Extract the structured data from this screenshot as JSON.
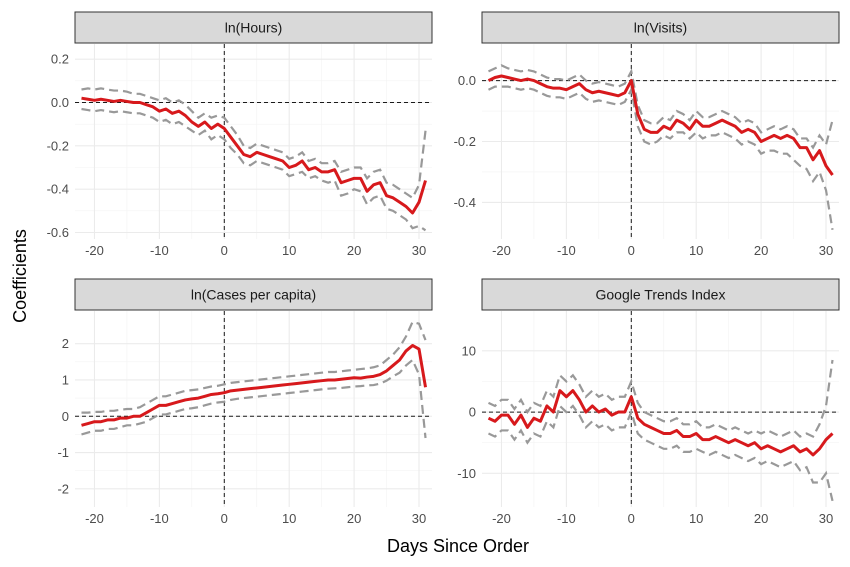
{
  "axes": {
    "xlabel": "Days Since Order",
    "ylabel": "Coefficients"
  },
  "colors": {
    "estimate": "#d7191c",
    "confidence_band": "#999999",
    "reference": "#1a1a1a",
    "strip": "#d9d9d9"
  },
  "chart_data": [
    {
      "type": "line",
      "title": "ln(Hours)",
      "xlim": [
        -23,
        32
      ],
      "ylim": [
        -0.63,
        0.27
      ],
      "x_ticks": [
        -20,
        -10,
        0,
        10,
        20,
        30
      ],
      "y_ticks": [
        -0.6,
        -0.4,
        -0.2,
        0.0,
        0.2
      ],
      "y_tick_labels": [
        "-0.6",
        "-0.4",
        "-0.2",
        "0.0",
        "0.2"
      ],
      "x": [
        -22,
        -21,
        -20,
        -19,
        -18,
        -17,
        -16,
        -15,
        -14,
        -13,
        -12,
        -11,
        -10,
        -9,
        -8,
        -7,
        -6,
        -5,
        -4,
        -3,
        -2,
        -1,
        0,
        1,
        2,
        3,
        4,
        5,
        6,
        7,
        8,
        9,
        10,
        11,
        12,
        13,
        14,
        15,
        16,
        17,
        18,
        19,
        20,
        21,
        22,
        23,
        24,
        25,
        26,
        27,
        28,
        29,
        30,
        31
      ],
      "series": [
        {
          "role": "estimate",
          "values": [
            0.02,
            0.015,
            0.01,
            0.015,
            0.01,
            0.005,
            0.01,
            0.005,
            0.0,
            0.0,
            -0.01,
            -0.02,
            -0.04,
            -0.03,
            -0.05,
            -0.04,
            -0.06,
            -0.09,
            -0.11,
            -0.09,
            -0.12,
            -0.1,
            -0.12,
            -0.16,
            -0.2,
            -0.24,
            -0.25,
            -0.23,
            -0.24,
            -0.25,
            -0.26,
            -0.27,
            -0.3,
            -0.29,
            -0.27,
            -0.31,
            -0.3,
            -0.32,
            -0.32,
            -0.31,
            -0.37,
            -0.36,
            -0.35,
            -0.35,
            -0.41,
            -0.38,
            -0.37,
            -0.43,
            -0.44,
            -0.46,
            -0.48,
            -0.51,
            -0.46,
            -0.36
          ]
        },
        {
          "role": "upper",
          "values": [
            0.06,
            0.065,
            0.06,
            0.065,
            0.06,
            0.055,
            0.055,
            0.05,
            0.04,
            0.04,
            0.03,
            0.02,
            0.01,
            0.02,
            0.0,
            0.01,
            -0.01,
            -0.04,
            -0.07,
            -0.05,
            -0.07,
            -0.06,
            -0.07,
            -0.11,
            -0.15,
            -0.2,
            -0.21,
            -0.19,
            -0.2,
            -0.21,
            -0.22,
            -0.23,
            -0.26,
            -0.25,
            -0.23,
            -0.27,
            -0.26,
            -0.28,
            -0.28,
            -0.27,
            -0.32,
            -0.31,
            -0.3,
            -0.3,
            -0.35,
            -0.32,
            -0.31,
            -0.37,
            -0.38,
            -0.4,
            -0.42,
            -0.44,
            -0.38,
            -0.13
          ]
        },
        {
          "role": "lower",
          "values": [
            -0.03,
            -0.035,
            -0.04,
            -0.035,
            -0.04,
            -0.045,
            -0.04,
            -0.045,
            -0.05,
            -0.05,
            -0.06,
            -0.07,
            -0.09,
            -0.08,
            -0.1,
            -0.09,
            -0.11,
            -0.13,
            -0.15,
            -0.13,
            -0.17,
            -0.15,
            -0.17,
            -0.21,
            -0.24,
            -0.28,
            -0.29,
            -0.27,
            -0.28,
            -0.29,
            -0.3,
            -0.31,
            -0.34,
            -0.33,
            -0.32,
            -0.35,
            -0.34,
            -0.36,
            -0.37,
            -0.36,
            -0.43,
            -0.42,
            -0.4,
            -0.41,
            -0.47,
            -0.44,
            -0.43,
            -0.49,
            -0.5,
            -0.52,
            -0.54,
            -0.58,
            -0.57,
            -0.59
          ]
        }
      ]
    },
    {
      "type": "line",
      "title": "ln(Visits)",
      "xlim": [
        -23,
        32
      ],
      "ylim": [
        -0.52,
        0.12
      ],
      "x_ticks": [
        -20,
        -10,
        0,
        10,
        20,
        30
      ],
      "y_ticks": [
        -0.4,
        -0.2,
        0.0
      ],
      "y_tick_labels": [
        "-0.4",
        "-0.2",
        "0.0"
      ],
      "x": [
        -22,
        -21,
        -20,
        -19,
        -18,
        -17,
        -16,
        -15,
        -14,
        -13,
        -12,
        -11,
        -10,
        -9,
        -8,
        -7,
        -6,
        -5,
        -4,
        -3,
        -2,
        -1,
        0,
        1,
        2,
        3,
        4,
        5,
        6,
        7,
        8,
        9,
        10,
        11,
        12,
        13,
        14,
        15,
        16,
        17,
        18,
        19,
        20,
        21,
        22,
        23,
        24,
        25,
        26,
        27,
        28,
        29,
        30,
        31
      ],
      "series": [
        {
          "role": "estimate",
          "values": [
            0.0,
            0.01,
            0.015,
            0.01,
            0.005,
            0.0,
            0.005,
            0.0,
            -0.01,
            -0.02,
            -0.025,
            -0.025,
            -0.03,
            -0.02,
            -0.01,
            -0.03,
            -0.04,
            -0.035,
            -0.04,
            -0.045,
            -0.05,
            -0.04,
            0.0,
            -0.11,
            -0.16,
            -0.17,
            -0.17,
            -0.15,
            -0.16,
            -0.13,
            -0.14,
            -0.16,
            -0.13,
            -0.15,
            -0.15,
            -0.14,
            -0.13,
            -0.14,
            -0.15,
            -0.17,
            -0.16,
            -0.17,
            -0.2,
            -0.19,
            -0.18,
            -0.19,
            -0.18,
            -0.19,
            -0.22,
            -0.22,
            -0.26,
            -0.23,
            -0.28,
            -0.31
          ]
        },
        {
          "role": "upper",
          "values": [
            0.03,
            0.04,
            0.05,
            0.04,
            0.035,
            0.03,
            0.035,
            0.03,
            0.02,
            0.01,
            0.005,
            0.005,
            0.0,
            0.01,
            0.02,
            0.0,
            -0.01,
            -0.005,
            -0.01,
            -0.015,
            -0.02,
            -0.01,
            0.03,
            -0.08,
            -0.13,
            -0.14,
            -0.14,
            -0.12,
            -0.13,
            -0.1,
            -0.11,
            -0.13,
            -0.1,
            -0.12,
            -0.12,
            -0.11,
            -0.1,
            -0.11,
            -0.12,
            -0.14,
            -0.13,
            -0.14,
            -0.17,
            -0.16,
            -0.15,
            -0.16,
            -0.15,
            -0.16,
            -0.19,
            -0.19,
            -0.22,
            -0.18,
            -0.21,
            -0.13
          ]
        },
        {
          "role": "lower",
          "values": [
            -0.03,
            -0.02,
            -0.02,
            -0.02,
            -0.025,
            -0.03,
            -0.025,
            -0.03,
            -0.04,
            -0.05,
            -0.055,
            -0.055,
            -0.06,
            -0.05,
            -0.04,
            -0.06,
            -0.07,
            -0.065,
            -0.07,
            -0.075,
            -0.08,
            -0.07,
            -0.03,
            -0.15,
            -0.2,
            -0.21,
            -0.2,
            -0.18,
            -0.19,
            -0.17,
            -0.17,
            -0.19,
            -0.17,
            -0.19,
            -0.18,
            -0.18,
            -0.17,
            -0.18,
            -0.19,
            -0.21,
            -0.2,
            -0.21,
            -0.24,
            -0.23,
            -0.23,
            -0.24,
            -0.24,
            -0.26,
            -0.28,
            -0.29,
            -0.33,
            -0.3,
            -0.36,
            -0.49
          ]
        }
      ]
    },
    {
      "type": "line",
      "title": "ln(Cases per capita)",
      "xlim": [
        -23,
        32
      ],
      "ylim": [
        -2.5,
        2.9
      ],
      "x_ticks": [
        -20,
        -10,
        0,
        10,
        20,
        30
      ],
      "y_ticks": [
        -2,
        -1,
        0,
        1,
        2
      ],
      "y_tick_labels": [
        "-2",
        "-1",
        "0",
        "1",
        "2"
      ],
      "x": [
        -22,
        -21,
        -20,
        -19,
        -18,
        -17,
        -16,
        -15,
        -14,
        -13,
        -12,
        -11,
        -10,
        -9,
        -8,
        -7,
        -6,
        -5,
        -4,
        -3,
        -2,
        -1,
        0,
        1,
        2,
        3,
        4,
        5,
        6,
        7,
        8,
        9,
        10,
        11,
        12,
        13,
        14,
        15,
        16,
        17,
        18,
        19,
        20,
        21,
        22,
        23,
        24,
        25,
        26,
        27,
        28,
        29,
        30,
        31
      ],
      "series": [
        {
          "role": "estimate",
          "values": [
            -0.25,
            -0.2,
            -0.15,
            -0.15,
            -0.1,
            -0.1,
            -0.05,
            -0.05,
            0.0,
            0.0,
            0.1,
            0.2,
            0.3,
            0.3,
            0.35,
            0.4,
            0.45,
            0.48,
            0.5,
            0.55,
            0.6,
            0.62,
            0.65,
            0.7,
            0.72,
            0.74,
            0.76,
            0.78,
            0.8,
            0.82,
            0.84,
            0.86,
            0.88,
            0.9,
            0.92,
            0.94,
            0.96,
            0.98,
            1.0,
            1.0,
            1.02,
            1.04,
            1.06,
            1.05,
            1.08,
            1.1,
            1.15,
            1.25,
            1.4,
            1.55,
            1.8,
            1.95,
            1.85,
            0.8
          ]
        },
        {
          "role": "upper",
          "values": [
            0.1,
            0.1,
            0.12,
            0.12,
            0.15,
            0.15,
            0.18,
            0.2,
            0.2,
            0.25,
            0.35,
            0.45,
            0.55,
            0.55,
            0.6,
            0.65,
            0.7,
            0.72,
            0.74,
            0.78,
            0.82,
            0.84,
            0.88,
            0.92,
            0.94,
            0.96,
            0.98,
            1.0,
            1.02,
            1.04,
            1.06,
            1.08,
            1.1,
            1.12,
            1.14,
            1.16,
            1.18,
            1.2,
            1.22,
            1.22,
            1.24,
            1.26,
            1.28,
            1.3,
            1.32,
            1.35,
            1.4,
            1.55,
            1.7,
            1.9,
            2.2,
            2.6,
            2.55,
            2.1
          ]
        },
        {
          "role": "lower",
          "values": [
            -0.5,
            -0.45,
            -0.4,
            -0.4,
            -0.35,
            -0.35,
            -0.3,
            -0.25,
            -0.25,
            -0.2,
            -0.15,
            -0.05,
            0.05,
            0.05,
            0.1,
            0.15,
            0.2,
            0.22,
            0.25,
            0.3,
            0.35,
            0.38,
            0.4,
            0.45,
            0.48,
            0.5,
            0.52,
            0.54,
            0.56,
            0.58,
            0.6,
            0.62,
            0.64,
            0.66,
            0.68,
            0.7,
            0.72,
            0.74,
            0.76,
            0.77,
            0.78,
            0.8,
            0.82,
            0.83,
            0.85,
            0.86,
            0.9,
            0.98,
            1.1,
            1.2,
            1.4,
            1.55,
            1.15,
            -0.6
          ]
        }
      ]
    },
    {
      "type": "line",
      "title": "Google Trends Index",
      "xlim": [
        -23,
        32
      ],
      "ylim": [
        -15.5,
        16.5
      ],
      "x_ticks": [
        -20,
        -10,
        0,
        10,
        20,
        30
      ],
      "y_ticks": [
        -10,
        0,
        10
      ],
      "y_tick_labels": [
        "-10",
        "0",
        "10"
      ],
      "x": [
        -22,
        -21,
        -20,
        -19,
        -18,
        -17,
        -16,
        -15,
        -14,
        -13,
        -12,
        -11,
        -10,
        -9,
        -8,
        -7,
        -6,
        -5,
        -4,
        -3,
        -2,
        -1,
        0,
        1,
        2,
        3,
        4,
        5,
        6,
        7,
        8,
        9,
        10,
        11,
        12,
        13,
        14,
        15,
        16,
        17,
        18,
        19,
        20,
        21,
        22,
        23,
        24,
        25,
        26,
        27,
        28,
        29,
        30,
        31
      ],
      "series": [
        {
          "role": "estimate",
          "values": [
            -1.0,
            -1.5,
            -0.5,
            -0.5,
            -2.0,
            -0.5,
            -2.5,
            -1.0,
            -1.5,
            1.0,
            0.0,
            3.5,
            2.5,
            3.5,
            2.0,
            0.0,
            1.0,
            0.0,
            0.5,
            -0.5,
            0.0,
            0.0,
            2.5,
            -1.0,
            -2.0,
            -2.5,
            -3.0,
            -3.5,
            -3.5,
            -3.0,
            -4.0,
            -4.0,
            -3.5,
            -4.5,
            -4.5,
            -4.0,
            -4.5,
            -5.0,
            -4.5,
            -5.0,
            -5.5,
            -5.0,
            -6.0,
            -5.5,
            -6.0,
            -6.5,
            -6.0,
            -5.5,
            -6.5,
            -6.0,
            -7.0,
            -6.0,
            -4.5,
            -3.5
          ]
        },
        {
          "role": "upper",
          "values": [
            1.5,
            1.0,
            2.0,
            2.0,
            0.5,
            2.0,
            0.0,
            1.5,
            1.0,
            3.5,
            2.5,
            6.0,
            5.0,
            6.0,
            4.5,
            2.5,
            3.5,
            2.5,
            3.0,
            2.0,
            2.5,
            2.5,
            5.0,
            1.5,
            0.0,
            -0.5,
            -1.0,
            -1.5,
            -1.5,
            -1.0,
            -2.0,
            -2.0,
            -1.5,
            -2.5,
            -2.5,
            -2.0,
            -2.5,
            -3.0,
            -2.5,
            -3.0,
            -3.5,
            -3.0,
            -3.5,
            -3.0,
            -3.5,
            -4.0,
            -3.5,
            -3.0,
            -4.0,
            -3.5,
            -4.0,
            -2.0,
            1.0,
            8.5
          ]
        },
        {
          "role": "lower",
          "values": [
            -3.5,
            -4.0,
            -3.0,
            -3.0,
            -4.5,
            -3.0,
            -5.0,
            -3.5,
            -4.0,
            -1.5,
            -2.5,
            1.0,
            0.0,
            1.0,
            -0.5,
            -2.5,
            -1.5,
            -2.5,
            -2.0,
            -3.0,
            -2.5,
            -2.5,
            0.0,
            -3.5,
            -4.5,
            -5.0,
            -5.5,
            -6.0,
            -6.0,
            -5.5,
            -6.5,
            -6.5,
            -6.0,
            -6.5,
            -7.0,
            -6.5,
            -7.0,
            -7.5,
            -7.0,
            -7.5,
            -8.0,
            -7.5,
            -8.5,
            -8.0,
            -8.5,
            -9.0,
            -8.5,
            -8.0,
            -9.5,
            -9.0,
            -11.5,
            -11.5,
            -10.0,
            -14.5
          ]
        }
      ]
    }
  ]
}
